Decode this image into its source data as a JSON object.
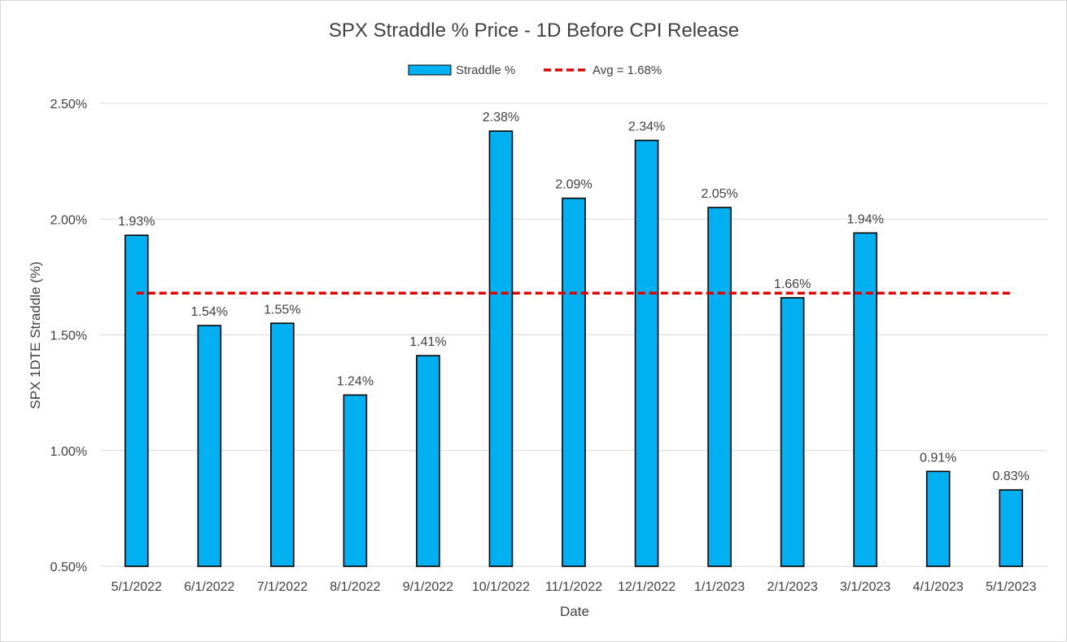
{
  "chart_data": {
    "type": "bar",
    "title": "SPX Straddle % Price - 1D Before CPI Release",
    "xlabel": "Date",
    "ylabel": "SPX 1DTE Straddle (%)",
    "categories": [
      "5/1/2022",
      "6/1/2022",
      "7/1/2022",
      "8/1/2022",
      "9/1/2022",
      "10/1/2022",
      "11/1/2022",
      "12/1/2022",
      "1/1/2023",
      "2/1/2023",
      "3/1/2023",
      "4/1/2023",
      "5/1/2023"
    ],
    "series": [
      {
        "name": "Straddle %",
        "type": "bar",
        "color": "#00b0f0",
        "values": [
          1.93,
          1.54,
          1.55,
          1.24,
          1.41,
          2.38,
          2.09,
          2.34,
          2.05,
          1.66,
          1.94,
          0.91,
          0.83
        ],
        "labels": [
          "1.93%",
          "1.54%",
          "1.55%",
          "1.24%",
          "1.41%",
          "2.38%",
          "2.09%",
          "2.34%",
          "2.05%",
          "1.66%",
          "1.94%",
          "0.91%",
          "0.83%"
        ]
      },
      {
        "name": "Avg = 1.68%",
        "type": "line",
        "style": "dashed",
        "color": "#e00000",
        "value": 1.68
      }
    ],
    "ylim": [
      0.5,
      2.5
    ],
    "yticks": [
      0.5,
      1.0,
      1.5,
      2.0,
      2.5
    ],
    "ytick_labels": [
      "0.50%",
      "1.00%",
      "1.50%",
      "2.00%",
      "2.50%"
    ],
    "grid": true,
    "legend_position": "top-center"
  }
}
